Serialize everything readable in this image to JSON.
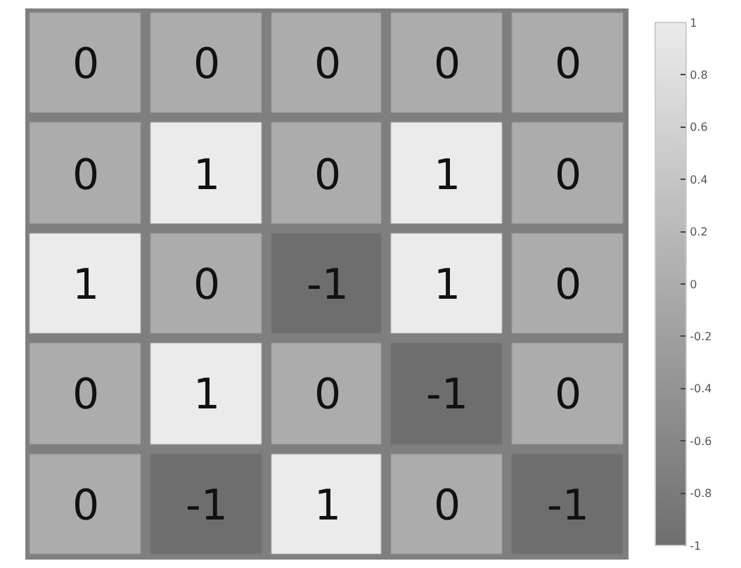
{
  "chart_data": {
    "type": "heatmap",
    "categories": [
      null,
      null,
      null,
      null,
      null
    ],
    "y_categories": [
      null,
      null,
      null,
      null,
      null
    ],
    "cells": [
      [
        0,
        0,
        0,
        0,
        0
      ],
      [
        0,
        1,
        0,
        1,
        0
      ],
      [
        1,
        0,
        -1,
        1,
        0
      ],
      [
        0,
        1,
        0,
        -1,
        0
      ],
      [
        0,
        -1,
        1,
        0,
        -1
      ]
    ],
    "data_labels": true,
    "clim": [
      -1,
      1
    ],
    "cticks": [
      -1,
      -0.8,
      -0.6,
      -0.4,
      -0.2,
      0,
      0.2,
      0.4,
      0.6,
      0.8,
      1
    ]
  }
}
